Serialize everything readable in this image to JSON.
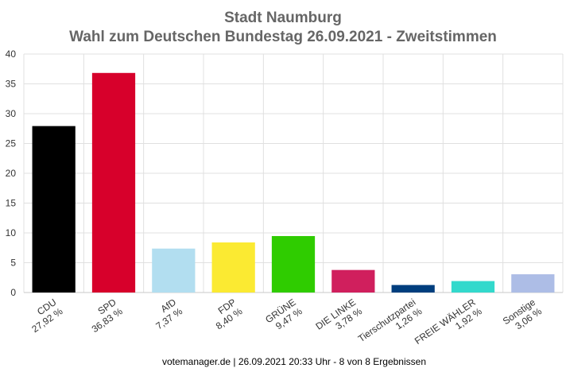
{
  "chart_data": {
    "type": "bar",
    "title": "Stadt Naumburg",
    "subtitle": "Wahl zum Deutschen Bundestag 26.09.2021  - Zweitstimmen",
    "categories": [
      "CDU",
      "SPD",
      "AfD",
      "FDP",
      "GRÜNE",
      "DIE LINKE",
      "Tierschutzpartei",
      "FREIE WÄHLER",
      "Sonstige"
    ],
    "values": [
      27.92,
      36.83,
      7.37,
      8.4,
      9.47,
      3.78,
      1.26,
      1.92,
      3.06
    ],
    "value_labels": [
      "27,92 %",
      "36,83 %",
      "7,37 %",
      "8,40 %",
      "9,47 %",
      "3,78 %",
      "1,26 %",
      "1,92 %",
      "3,06 %"
    ],
    "colors": [
      "#000000",
      "#d7002b",
      "#b2def0",
      "#fbea32",
      "#2fcc00",
      "#d01f5d",
      "#003e7e",
      "#33d9cc",
      "#adbde6"
    ],
    "ylim": [
      0,
      40
    ],
    "yticks": [
      0,
      5,
      10,
      15,
      20,
      25,
      30,
      35,
      40
    ],
    "grid": true,
    "xlabel": "",
    "ylabel": ""
  },
  "footer": "votemanager.de | 26.09.2021 20:33 Uhr - 8 von 8 Ergebnissen"
}
